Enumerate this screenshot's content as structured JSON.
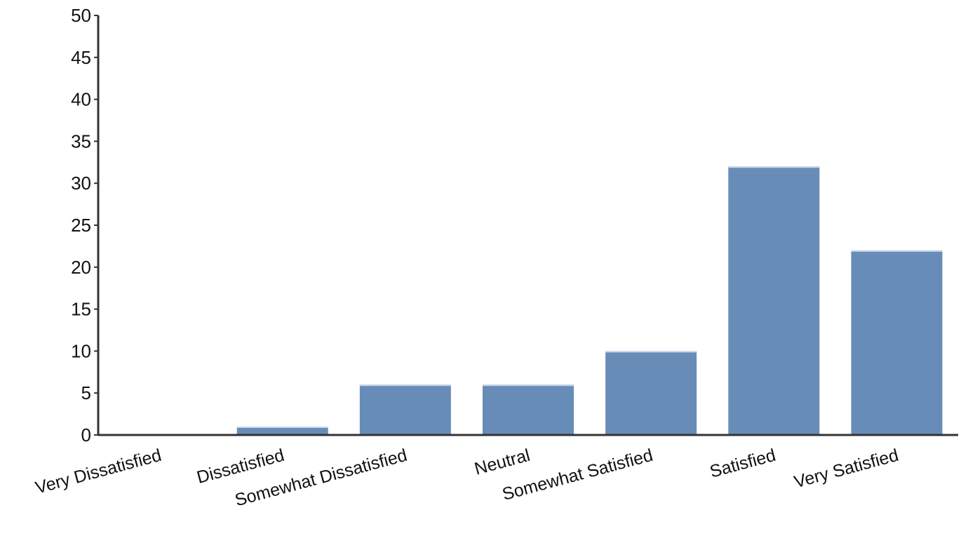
{
  "chart_data": {
    "type": "bar",
    "categories": [
      "Very Dissatisfied",
      "Dissatisfied",
      "Somewhat Dissatisfied",
      "Neutral",
      "Somewhat Satisfied",
      "Satisfied",
      "Very Satisfied"
    ],
    "values": [
      0,
      1,
      6,
      6,
      10,
      32,
      22
    ],
    "yticks": [
      "0",
      "5",
      "10",
      "15",
      "20",
      "25",
      "30",
      "35",
      "40",
      "45",
      "50"
    ],
    "ylim": [
      0,
      50
    ],
    "grid": false,
    "legend": "none",
    "bar_color": "#678cb7"
  }
}
